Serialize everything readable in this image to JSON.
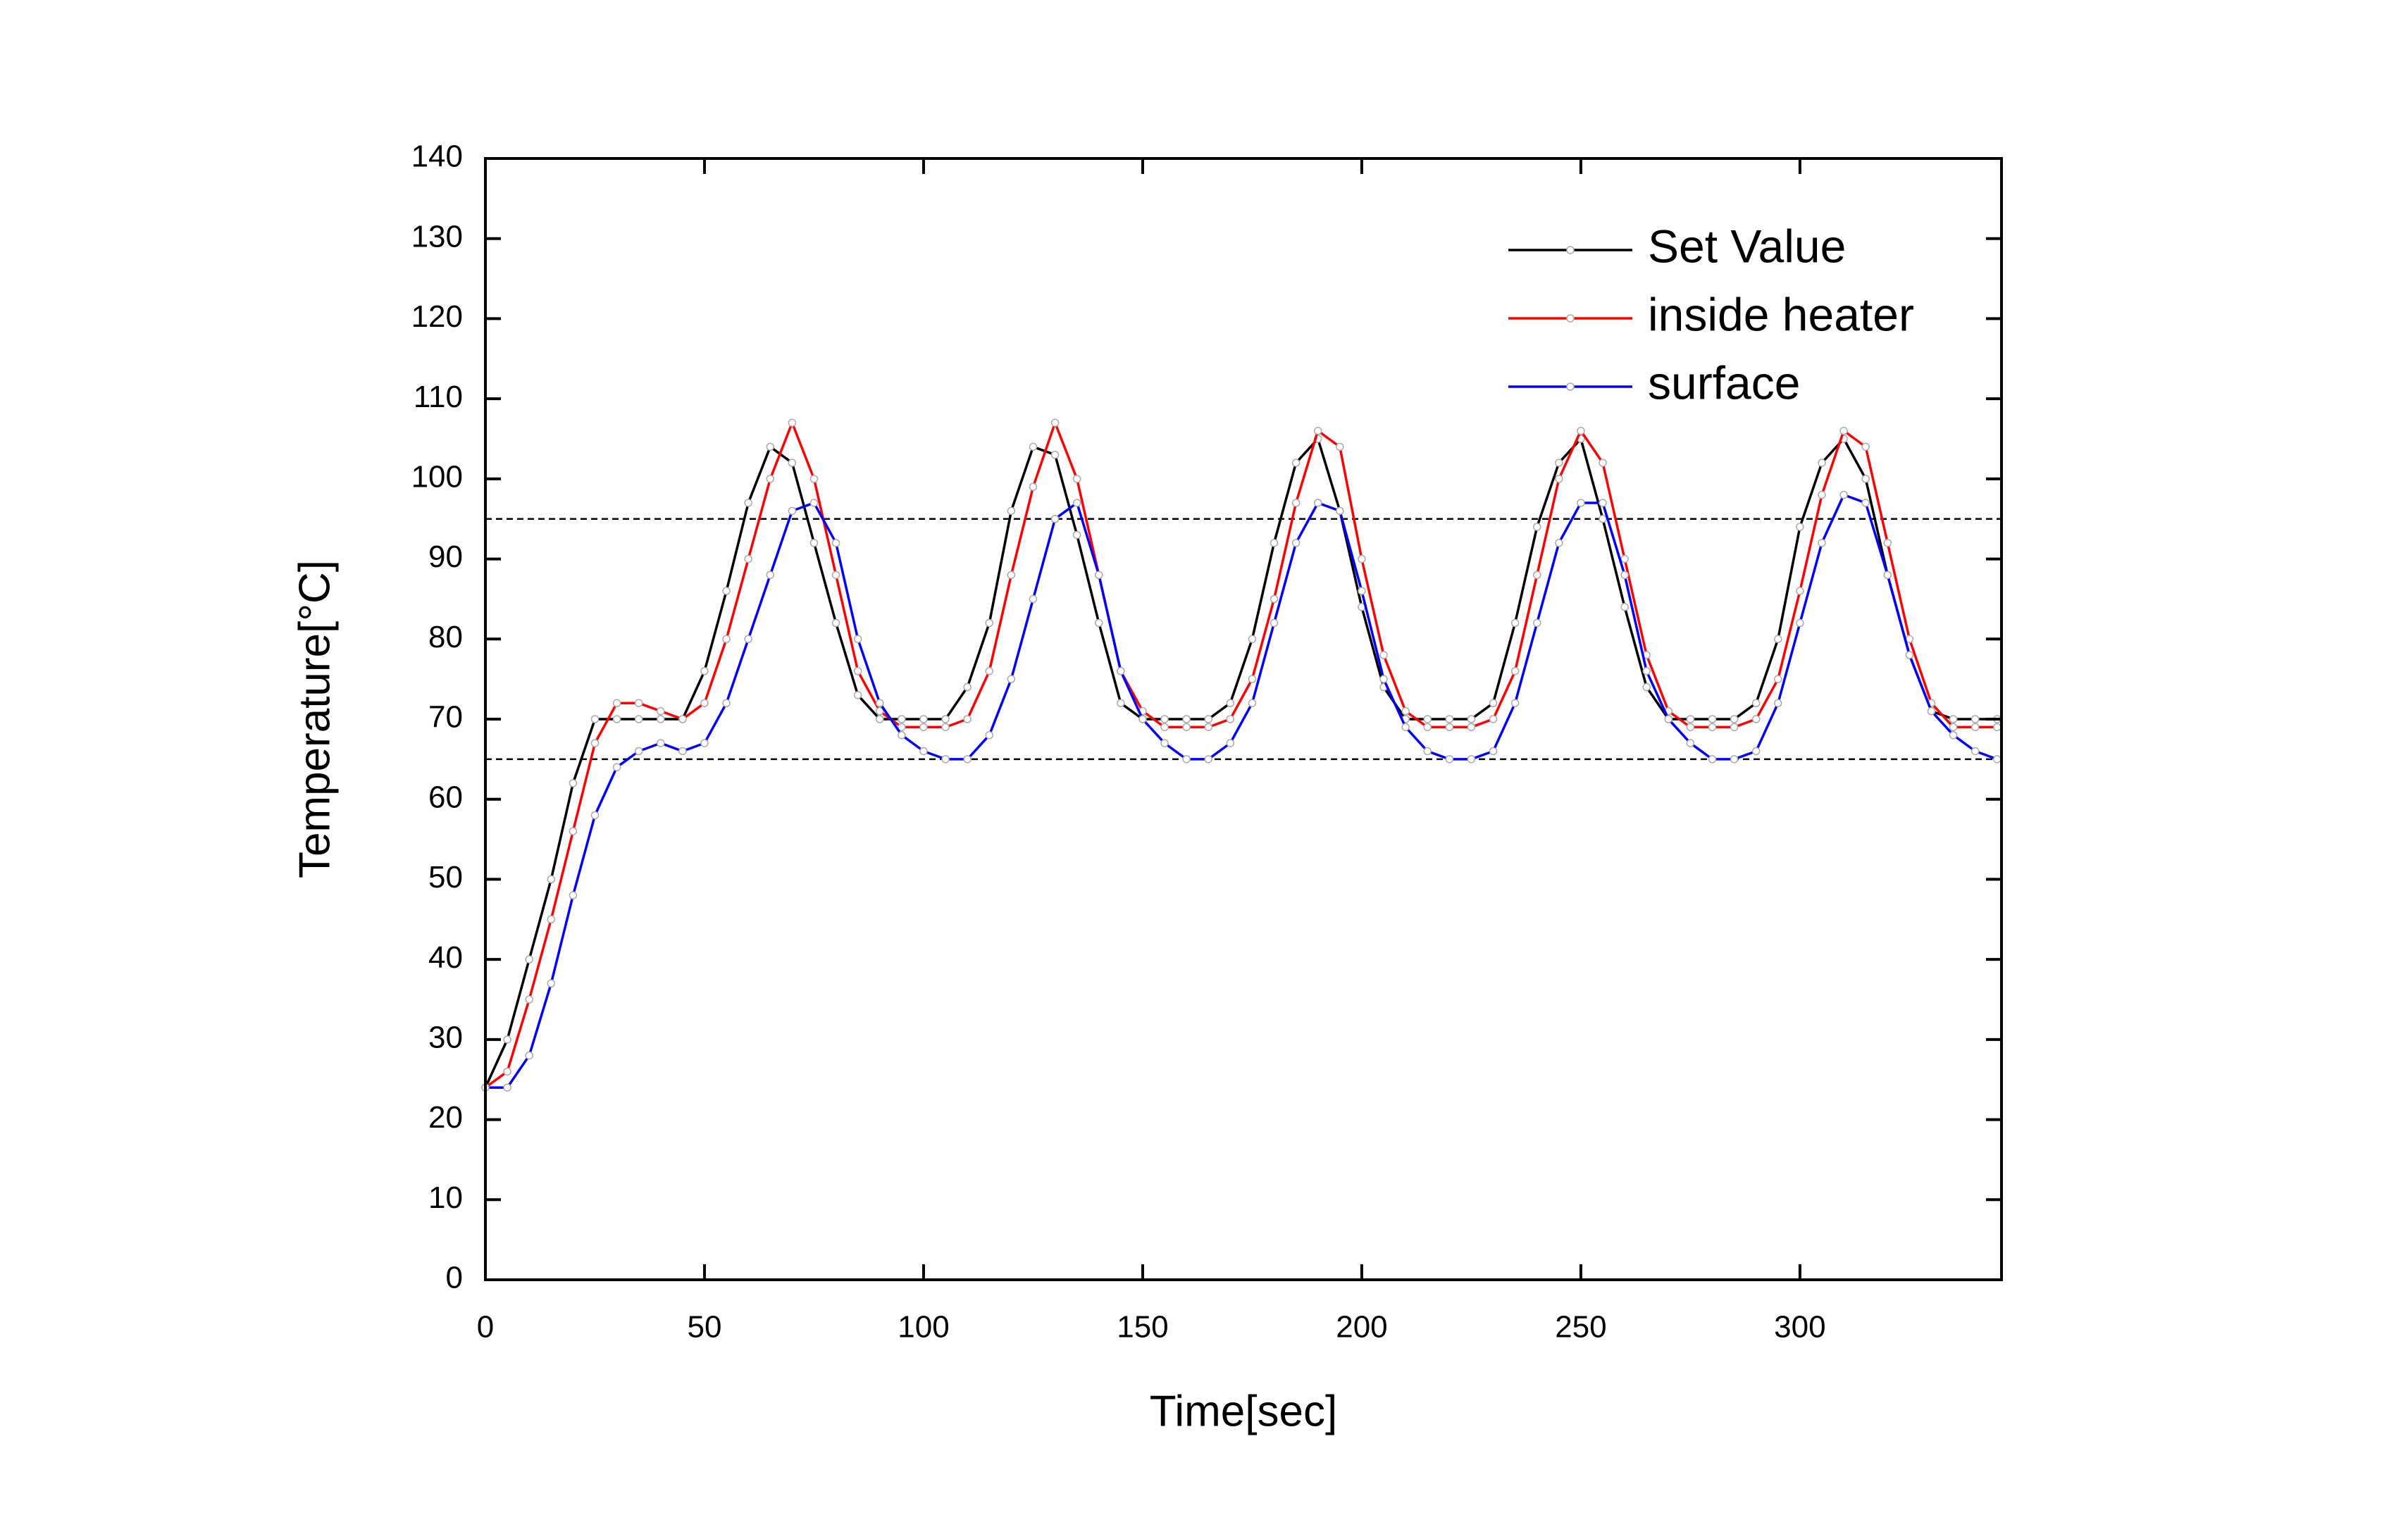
{
  "chart_data": {
    "type": "line",
    "xlabel": "Time[sec]",
    "ylabel": "Temperature[°C]",
    "x": [
      0,
      5,
      10,
      15,
      20,
      25,
      30,
      35,
      40,
      45,
      50,
      55,
      60,
      65,
      70,
      75,
      80,
      85,
      90,
      95,
      100,
      105,
      110,
      115,
      120,
      125,
      130,
      135,
      140,
      145,
      150,
      155,
      160,
      165,
      170,
      175,
      180,
      185,
      190,
      195,
      200,
      205,
      210,
      215,
      220,
      225,
      230,
      235,
      240,
      245,
      250,
      255,
      260,
      265,
      270,
      275,
      280,
      285,
      290,
      295,
      300,
      305,
      310,
      315,
      320,
      325,
      330,
      335,
      340,
      345
    ],
    "series": [
      {
        "name": "Set Value",
        "color": "#000000",
        "values": [
          24,
          30,
          40,
          50,
          62,
          70,
          70,
          70,
          70,
          70,
          76,
          86,
          97,
          104,
          102,
          92,
          82,
          73,
          70,
          70,
          70,
          70,
          74,
          82,
          96,
          104,
          103,
          93,
          82,
          72,
          70,
          70,
          70,
          70,
          72,
          80,
          92,
          102,
          105,
          96,
          84,
          74,
          70,
          70,
          70,
          70,
          72,
          82,
          94,
          102,
          105,
          95,
          84,
          74,
          70,
          70,
          70,
          70,
          72,
          80,
          94,
          102,
          105,
          100,
          88,
          78,
          71,
          70,
          70,
          70
        ]
      },
      {
        "name": "inside heater",
        "color": "#ff0000",
        "values": [
          24,
          26,
          35,
          45,
          56,
          67,
          72,
          72,
          71,
          70,
          72,
          80,
          90,
          100,
          107,
          100,
          88,
          76,
          71,
          69,
          69,
          69,
          70,
          76,
          88,
          99,
          107,
          100,
          88,
          76,
          71,
          69,
          69,
          69,
          70,
          75,
          85,
          97,
          106,
          104,
          90,
          78,
          71,
          69,
          69,
          69,
          70,
          76,
          88,
          100,
          106,
          102,
          90,
          78,
          71,
          69,
          69,
          69,
          70,
          75,
          86,
          98,
          106,
          104,
          92,
          80,
          72,
          69,
          69,
          69
        ]
      },
      {
        "name": "surface",
        "color": "#0000ff",
        "values": [
          24,
          24,
          28,
          37,
          48,
          58,
          64,
          66,
          67,
          66,
          67,
          72,
          80,
          88,
          96,
          97,
          92,
          80,
          72,
          68,
          66,
          65,
          65,
          68,
          75,
          85,
          95,
          97,
          88,
          76,
          70,
          67,
          65,
          65,
          67,
          72,
          82,
          92,
          97,
          96,
          86,
          75,
          69,
          66,
          65,
          65,
          66,
          72,
          82,
          92,
          97,
          97,
          88,
          76,
          70,
          67,
          65,
          65,
          66,
          72,
          82,
          92,
          98,
          97,
          88,
          78,
          71,
          68,
          66,
          65
        ]
      }
    ],
    "reference_lines": [
      65,
      95
    ],
    "xlim": [
      0,
      346
    ],
    "xticks": [
      0,
      50,
      100,
      150,
      200,
      250,
      300
    ],
    "ylim": [
      0,
      140
    ],
    "yticks": [
      0,
      10,
      20,
      30,
      40,
      50,
      60,
      70,
      80,
      90,
      100,
      110,
      120,
      130,
      140
    ],
    "legend": "upper right"
  }
}
